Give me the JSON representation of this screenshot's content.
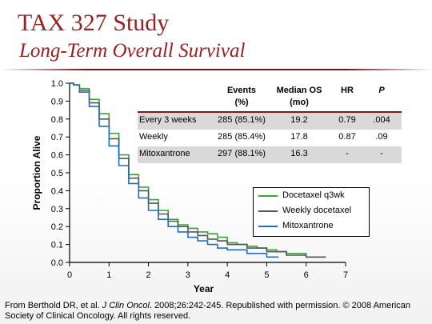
{
  "slide": {
    "title": "TAX 327 Study",
    "subtitle": "Long-Term Overall Survival",
    "source_before": "From Berthold DR, et al. ",
    "source_journal": "J Clin Oncol",
    "source_after": ". 2008;26:242-245. Republished with permission. © 2008 American Society of Clinical Oncology.  All rights reserved."
  },
  "table": {
    "headers": [
      {
        "line1": "",
        "line2": ""
      },
      {
        "line1": "Events",
        "line2": "(%)"
      },
      {
        "line1": "Median OS",
        "line2": "(mo)"
      },
      {
        "line1": "HR",
        "line2": ""
      },
      {
        "line1": "P",
        "line2": ""
      }
    ],
    "rows": [
      {
        "arm": "Every 3 weeks",
        "events": "285 (85.1%)",
        "median": "19.2",
        "hr": "0.79",
        "p": ".004"
      },
      {
        "arm": "Weekly",
        "events": "285 (85.4%)",
        "median": "17.8",
        "hr": "0.87",
        "p": ".09"
      },
      {
        "arm": "Mitoxantrone",
        "events": "297 (88.1%)",
        "median": "16.3",
        "hr": "-",
        "p": "-"
      }
    ]
  },
  "chart_data": {
    "type": "line",
    "xlabel": "Year",
    "ylabel": "Proportion Alive",
    "xlim": [
      0,
      7
    ],
    "ylim": [
      0,
      1
    ],
    "xticks": [
      "0",
      "1",
      "2",
      "3",
      "4",
      "5",
      "6",
      "7"
    ],
    "yticks": [
      "0.0",
      "0.1",
      "0.2",
      "0.3",
      "0.4",
      "0.5",
      "0.6",
      "0.7",
      "0.8",
      "0.9",
      "1.0"
    ],
    "legend_position": "bottom-right",
    "series": [
      {
        "name": "Docetaxel q3wk",
        "color": "#3aa63a",
        "x": [
          0,
          0.1,
          0.25,
          0.5,
          0.75,
          1.0,
          1.25,
          1.5,
          1.75,
          2.0,
          2.25,
          2.5,
          2.75,
          3.0,
          3.25,
          3.5,
          3.75,
          4.0,
          4.25,
          4.5,
          4.75,
          5.0,
          5.25,
          5.5,
          6.0,
          6.5
        ],
        "y": [
          1.0,
          0.99,
          0.97,
          0.91,
          0.83,
          0.72,
          0.6,
          0.49,
          0.42,
          0.35,
          0.29,
          0.24,
          0.21,
          0.19,
          0.17,
          0.16,
          0.14,
          0.11,
          0.1,
          0.09,
          0.08,
          0.07,
          0.06,
          0.05,
          0.03,
          0.03
        ]
      },
      {
        "name": "Weekly docetaxel",
        "color": "#555555",
        "x": [
          0,
          0.1,
          0.25,
          0.5,
          0.75,
          1.0,
          1.25,
          1.5,
          1.75,
          2.0,
          2.25,
          2.5,
          2.75,
          3.0,
          3.25,
          3.5,
          3.75,
          4.0,
          4.5,
          5.0,
          5.5,
          6.0,
          6.5
        ],
        "y": [
          1.0,
          0.99,
          0.96,
          0.89,
          0.8,
          0.69,
          0.58,
          0.47,
          0.4,
          0.33,
          0.27,
          0.23,
          0.2,
          0.17,
          0.15,
          0.13,
          0.12,
          0.1,
          0.08,
          0.06,
          0.04,
          0.03,
          0.03
        ]
      },
      {
        "name": "Mitoxantrone",
        "color": "#1f6fbf",
        "x": [
          0,
          0.1,
          0.25,
          0.5,
          0.75,
          1.0,
          1.25,
          1.5,
          1.75,
          2.0,
          2.25,
          2.5,
          2.75,
          3.0,
          3.25,
          3.5,
          3.75,
          4.0,
          4.5,
          5.0,
          5.3
        ],
        "y": [
          1.0,
          0.99,
          0.95,
          0.87,
          0.76,
          0.65,
          0.54,
          0.44,
          0.36,
          0.29,
          0.24,
          0.2,
          0.17,
          0.14,
          0.12,
          0.1,
          0.08,
          0.07,
          0.05,
          0.03,
          0.03
        ]
      }
    ]
  }
}
